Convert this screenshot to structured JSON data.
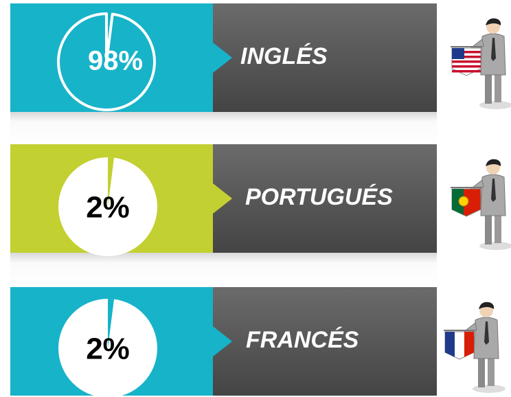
{
  "rows": [
    {
      "value": 98,
      "value_label": "98%",
      "label": "INGLÉS",
      "color": "#17b3c9",
      "pie_style": "outline",
      "value_label_color": "#ffffff"
    },
    {
      "value": 2,
      "value_label": "2%",
      "label": "PORTUGUÉS",
      "color": "#c2d032",
      "pie_style": "filled",
      "value_label_color": "#000000"
    },
    {
      "value": 2,
      "value_label": "2%",
      "label": "FRANCÉS",
      "color": "#17b3c9",
      "pie_style": "filled",
      "value_label_color": "#000000"
    }
  ]
}
